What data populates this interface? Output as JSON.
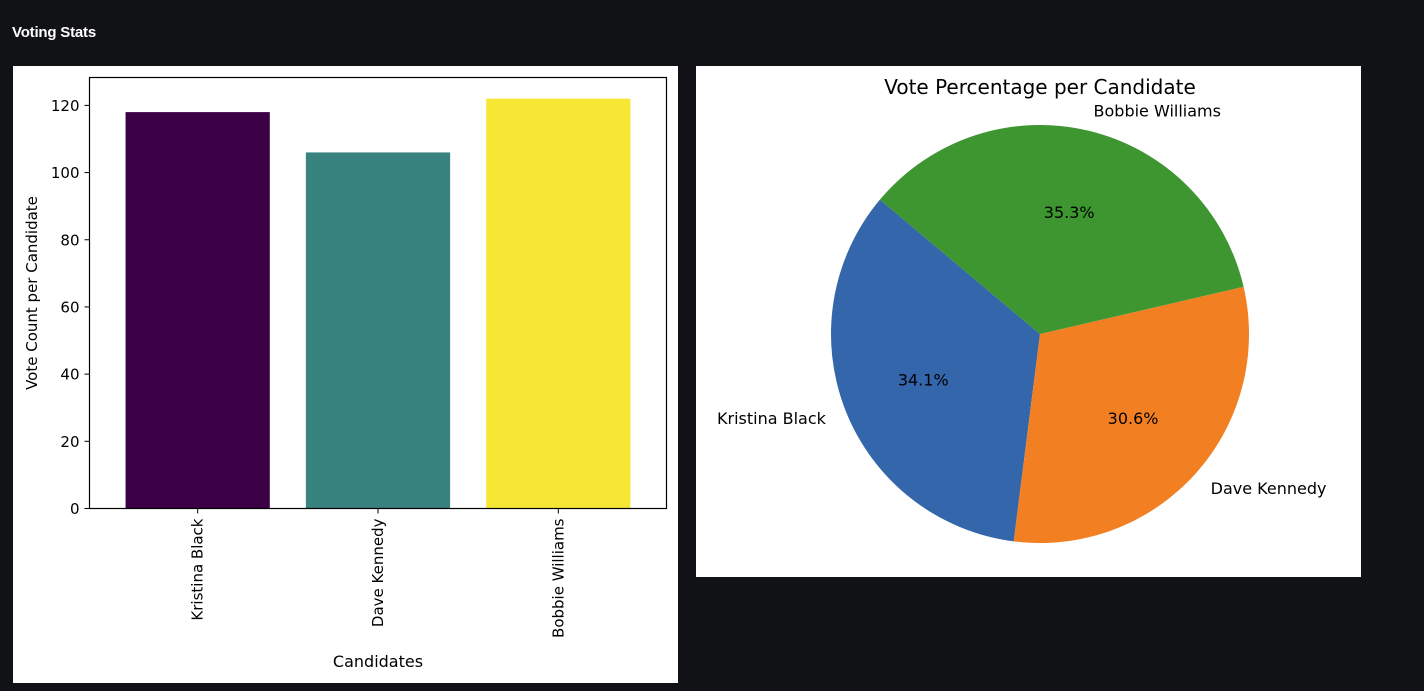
{
  "page": {
    "title": "Voting Stats"
  },
  "chart_data": [
    {
      "type": "bar",
      "title": "",
      "categories": [
        "Kristina Black",
        "Dave Kennedy",
        "Bobbie Williams"
      ],
      "values": [
        118,
        106,
        122
      ],
      "colors": [
        "#3b0045",
        "#38837f",
        "#f7e735"
      ],
      "xlabel": "Candidates",
      "ylabel": "Vote Count per Candidate",
      "ylim": [
        0,
        128.3
      ],
      "yticks": [
        0,
        20,
        40,
        60,
        80,
        100,
        120
      ],
      "xtick_rotation": 90,
      "grid": false
    },
    {
      "type": "pie",
      "title": "Vote Percentage per Candidate",
      "labels": [
        "Kristina Black",
        "Dave Kennedy",
        "Bobbie Williams"
      ],
      "values": [
        118,
        106,
        122
      ],
      "percent_labels": [
        "34.1%",
        "30.6%",
        "35.3%"
      ],
      "colors": [
        "#3366aa",
        "#f28023",
        "#3d9630"
      ],
      "start_angle_deg": 140
    }
  ]
}
